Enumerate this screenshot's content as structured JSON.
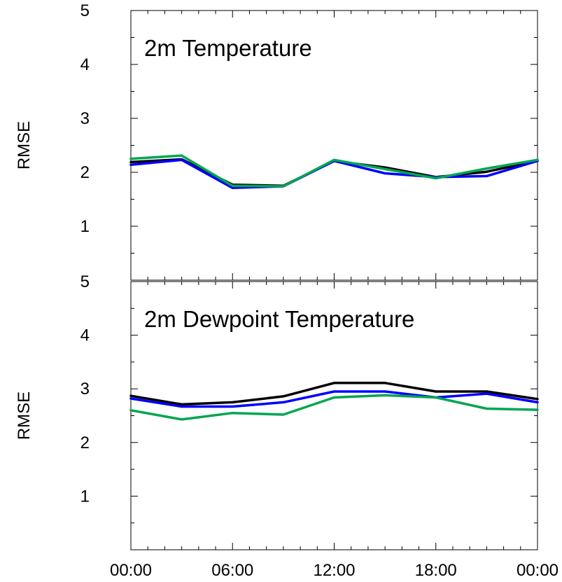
{
  "chart_data": [
    {
      "type": "line",
      "title": "2m Temperature",
      "xlabel": "",
      "ylabel": "RMSE",
      "ylim": [
        0,
        5
      ],
      "y_ticks": [
        "1",
        "2",
        "3",
        "4",
        "5"
      ],
      "x": [
        0,
        3,
        6,
        9,
        12,
        15,
        18,
        21,
        24
      ],
      "grid": false,
      "series": [
        {
          "color": "#000000",
          "values": [
            2.19,
            2.24,
            1.77,
            1.75,
            2.21,
            2.09,
            1.91,
            2.01,
            2.21
          ]
        },
        {
          "color": "#0000ff",
          "values": [
            2.14,
            2.23,
            1.71,
            1.74,
            2.21,
            1.98,
            1.91,
            1.93,
            2.21
          ]
        },
        {
          "color": "#00a650",
          "values": [
            2.25,
            2.31,
            1.75,
            1.74,
            2.23,
            2.06,
            1.89,
            2.07,
            2.23
          ]
        }
      ]
    },
    {
      "type": "line",
      "title": "2m Dewpoint Temperature",
      "xlabel": "",
      "ylabel": "RMSE",
      "ylim": [
        0,
        5
      ],
      "y_ticks": [
        "1",
        "2",
        "3",
        "4",
        "5"
      ],
      "x": [
        0,
        3,
        6,
        9,
        12,
        15,
        18,
        21,
        24
      ],
      "x_tick_labels": [
        "00:00",
        "06:00",
        "12:00",
        "18:00",
        "00:00"
      ],
      "x_tick_positions": [
        0,
        6,
        12,
        18,
        24
      ],
      "grid": false,
      "series": [
        {
          "color": "#000000",
          "values": [
            2.87,
            2.71,
            2.75,
            2.86,
            3.11,
            3.11,
            2.95,
            2.95,
            2.81
          ]
        },
        {
          "color": "#0000ff",
          "values": [
            2.82,
            2.67,
            2.67,
            2.75,
            2.95,
            2.95,
            2.84,
            2.91,
            2.75
          ]
        },
        {
          "color": "#00a650",
          "values": [
            2.6,
            2.43,
            2.55,
            2.52,
            2.84,
            2.88,
            2.84,
            2.63,
            2.61
          ]
        }
      ]
    }
  ]
}
